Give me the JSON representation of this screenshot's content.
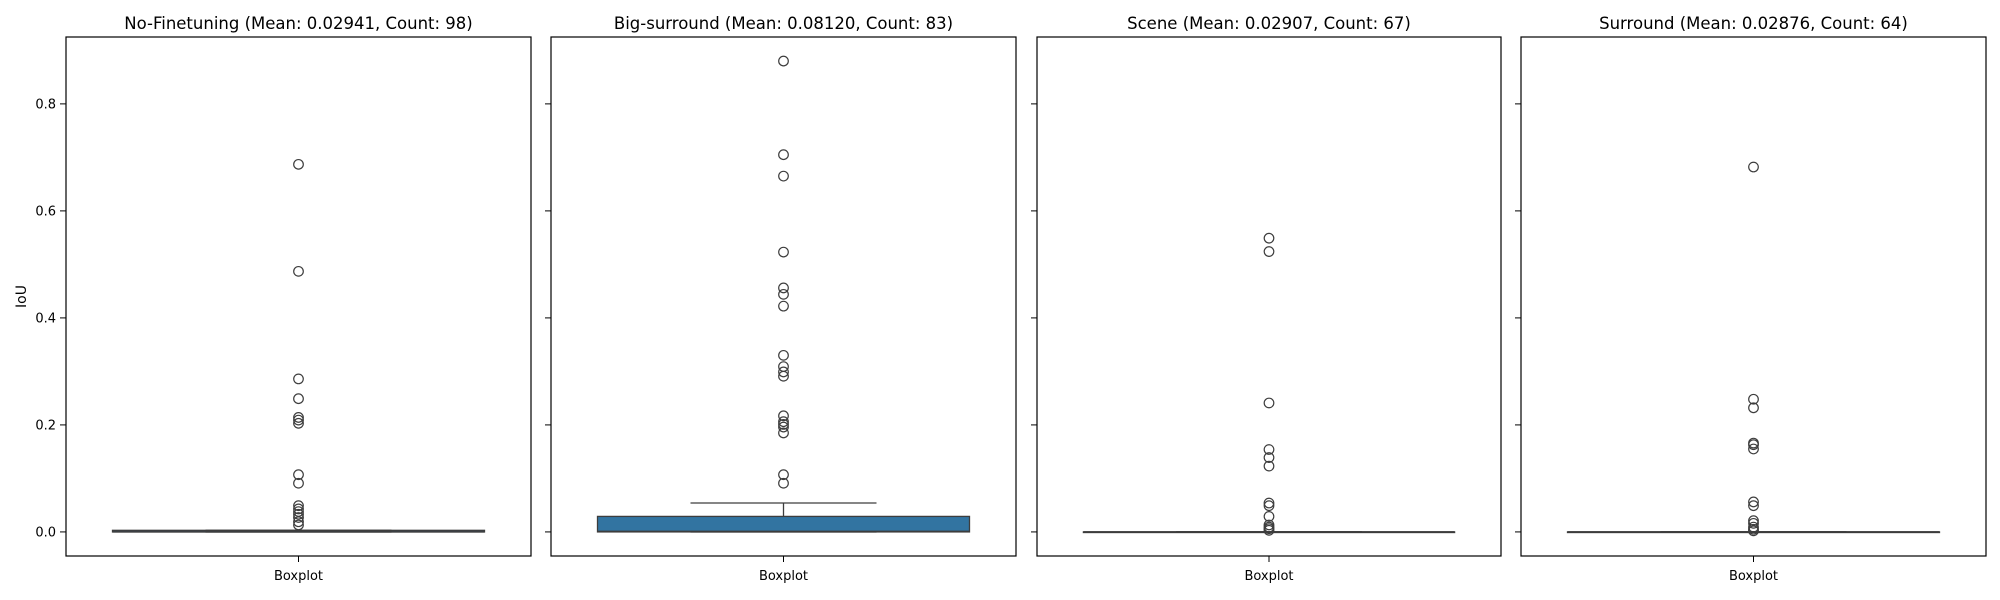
{
  "chart_data": [
    {
      "type": "box",
      "title": "No-Finetuning (Mean:  0.02941, Count: 98)",
      "xlabel": "",
      "ylabel": "IoU",
      "categories": [
        "Boxplot"
      ],
      "ylim": [
        -0.045,
        0.925
      ],
      "yticks": [
        0.0,
        0.2,
        0.4,
        0.6,
        0.8
      ],
      "box": {
        "q1": 0.0,
        "median": 0.0,
        "q3": 0.003,
        "whisker_low": 0.0,
        "whisker_high": 0.003
      },
      "outliers": [
        0.687,
        0.487,
        0.286,
        0.249,
        0.214,
        0.209,
        0.203,
        0.107,
        0.091,
        0.049,
        0.043,
        0.038,
        0.033,
        0.027,
        0.019,
        0.013
      ],
      "box_color": "#3274a1"
    },
    {
      "type": "box",
      "title": "Big-surround (Mean:  0.08120, Count: 83)",
      "xlabel": "",
      "ylabel": "",
      "categories": [
        "Boxplot"
      ],
      "ylim": [
        -0.045,
        0.925
      ],
      "yticks": [
        0.0,
        0.2,
        0.4,
        0.6,
        0.8
      ],
      "box": {
        "q1": 0.0,
        "median": 0.001,
        "q3": 0.029,
        "whisker_low": 0.0,
        "whisker_high": 0.054
      },
      "outliers": [
        0.88,
        0.705,
        0.665,
        0.523,
        0.456,
        0.444,
        0.422,
        0.33,
        0.309,
        0.299,
        0.291,
        0.217,
        0.206,
        0.201,
        0.196,
        0.185,
        0.107,
        0.091
      ],
      "box_color": "#3274a1"
    },
    {
      "type": "box",
      "title": "Scene (Mean:  0.02907, Count: 67)",
      "xlabel": "",
      "ylabel": "",
      "categories": [
        "Boxplot"
      ],
      "ylim": [
        -0.045,
        0.925
      ],
      "yticks": [
        0.0,
        0.2,
        0.4,
        0.6,
        0.8
      ],
      "box": {
        "q1": 0.0,
        "median": 0.0,
        "q3": 0.0,
        "whisker_low": 0.0,
        "whisker_high": 0.0
      },
      "outliers": [
        0.549,
        0.524,
        0.241,
        0.154,
        0.139,
        0.123,
        0.054,
        0.049,
        0.029,
        0.013,
        0.009,
        0.006,
        0.003
      ],
      "box_color": "#3274a1"
    },
    {
      "type": "box",
      "title": "Surround (Mean:  0.02876, Count: 64)",
      "xlabel": "",
      "ylabel": "",
      "categories": [
        "Boxplot"
      ],
      "ylim": [
        -0.045,
        0.925
      ],
      "yticks": [
        0.0,
        0.2,
        0.4,
        0.6,
        0.8
      ],
      "box": {
        "q1": 0.0,
        "median": 0.0,
        "q3": 0.0,
        "whisker_low": 0.0,
        "whisker_high": 0.0
      },
      "outliers": [
        0.682,
        0.248,
        0.232,
        0.166,
        0.163,
        0.155,
        0.056,
        0.049,
        0.021,
        0.016,
        0.009,
        0.005,
        0.002
      ],
      "box_color": "#3274a1"
    }
  ]
}
